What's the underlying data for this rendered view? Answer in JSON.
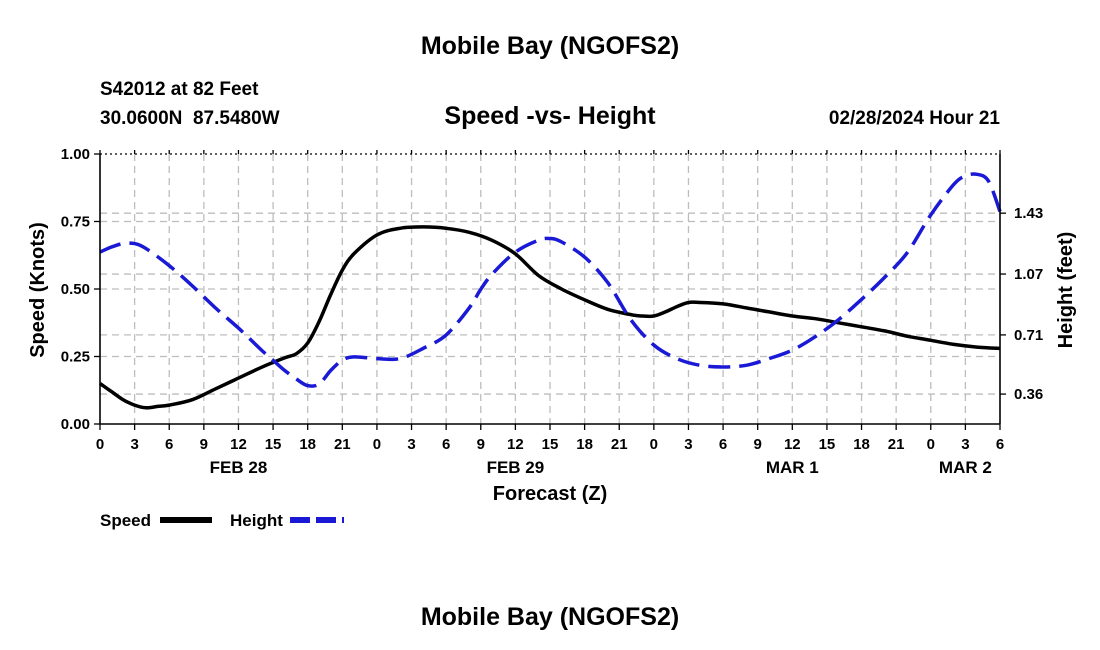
{
  "chart_data": {
    "type": "line",
    "title": "Mobile Bay (NGOFS2)",
    "subtitle": "Speed -vs- Height",
    "station": "S42012 at 82 Feet",
    "location": "30.0600N  87.5480W",
    "datetime": "02/28/2024 Hour 21",
    "xlabel": "Forecast (Z)",
    "ylabel_left": "Speed (Knots)",
    "ylabel_right": "Height (feet)",
    "x_range_hours": [
      0,
      78
    ],
    "x_ticks": [
      {
        "h": 0,
        "label": "0"
      },
      {
        "h": 3,
        "label": "3"
      },
      {
        "h": 6,
        "label": "6"
      },
      {
        "h": 9,
        "label": "9"
      },
      {
        "h": 12,
        "label": "12"
      },
      {
        "h": 15,
        "label": "15"
      },
      {
        "h": 18,
        "label": "18"
      },
      {
        "h": 21,
        "label": "21"
      },
      {
        "h": 24,
        "label": "0"
      },
      {
        "h": 27,
        "label": "3"
      },
      {
        "h": 30,
        "label": "6"
      },
      {
        "h": 33,
        "label": "9"
      },
      {
        "h": 36,
        "label": "12"
      },
      {
        "h": 39,
        "label": "15"
      },
      {
        "h": 42,
        "label": "18"
      },
      {
        "h": 45,
        "label": "21"
      },
      {
        "h": 48,
        "label": "0"
      },
      {
        "h": 51,
        "label": "3"
      },
      {
        "h": 54,
        "label": "6"
      },
      {
        "h": 57,
        "label": "9"
      },
      {
        "h": 60,
        "label": "12"
      },
      {
        "h": 63,
        "label": "15"
      },
      {
        "h": 66,
        "label": "18"
      },
      {
        "h": 69,
        "label": "21"
      },
      {
        "h": 72,
        "label": "0"
      },
      {
        "h": 75,
        "label": "3"
      },
      {
        "h": 78,
        "label": "6"
      }
    ],
    "date_labels": [
      {
        "h": 12,
        "label": "FEB 28"
      },
      {
        "h": 36,
        "label": "FEB 29"
      },
      {
        "h": 60,
        "label": "MAR 1"
      },
      {
        "h": 75,
        "label": "MAR 2"
      }
    ],
    "ylim_left": [
      0,
      1.0
    ],
    "yticks_left": [
      "0.00",
      "0.25",
      "0.50",
      "0.75",
      "1.00"
    ],
    "ylim_right": [
      0.183,
      1.78
    ],
    "yticks_right": [
      "0.36",
      "0.71",
      "1.07",
      "1.43"
    ],
    "series": [
      {
        "name": "Speed",
        "axis": "left",
        "color": "#000000",
        "style": "solid",
        "x": [
          0,
          1,
          2,
          3,
          4,
          5,
          6,
          8,
          10,
          12,
          14,
          16,
          17,
          18,
          19,
          20,
          21,
          22,
          24,
          26,
          28,
          30,
          32,
          34,
          36,
          38,
          40,
          42,
          44,
          46,
          47,
          48,
          49,
          50,
          51,
          52,
          54,
          56,
          58,
          60,
          62,
          64,
          66,
          68,
          70,
          72,
          74,
          76,
          78
        ],
        "values": [
          0.15,
          0.12,
          0.09,
          0.07,
          0.06,
          0.065,
          0.07,
          0.09,
          0.13,
          0.17,
          0.21,
          0.245,
          0.26,
          0.3,
          0.38,
          0.48,
          0.57,
          0.63,
          0.7,
          0.725,
          0.73,
          0.725,
          0.71,
          0.68,
          0.63,
          0.55,
          0.5,
          0.46,
          0.425,
          0.405,
          0.4,
          0.4,
          0.415,
          0.435,
          0.45,
          0.45,
          0.445,
          0.43,
          0.415,
          0.4,
          0.39,
          0.375,
          0.36,
          0.345,
          0.325,
          0.31,
          0.295,
          0.285,
          0.28
        ]
      },
      {
        "name": "Height",
        "axis": "right",
        "color": "#1a1ad6",
        "style": "dashed",
        "x": [
          0,
          1,
          2,
          3,
          4,
          6,
          8,
          10,
          12,
          14,
          15,
          16,
          17,
          18,
          19,
          20,
          21,
          22,
          24,
          26,
          28,
          30,
          32,
          33,
          34,
          36,
          38,
          39,
          40,
          42,
          44,
          46,
          48,
          50,
          52,
          54,
          56,
          58,
          60,
          62,
          64,
          66,
          68,
          70,
          72,
          74,
          75,
          76,
          77,
          78
        ],
        "values": [
          1.2,
          1.23,
          1.25,
          1.25,
          1.22,
          1.12,
          1.0,
          0.87,
          0.75,
          0.62,
          0.56,
          0.5,
          0.45,
          0.41,
          0.42,
          0.5,
          0.56,
          0.58,
          0.57,
          0.57,
          0.63,
          0.71,
          0.87,
          0.98,
          1.07,
          1.2,
          1.27,
          1.28,
          1.26,
          1.17,
          1.02,
          0.8,
          0.65,
          0.57,
          0.53,
          0.52,
          0.53,
          0.57,
          0.62,
          0.7,
          0.8,
          0.92,
          1.05,
          1.2,
          1.42,
          1.6,
          1.65,
          1.66,
          1.62,
          1.44
        ]
      }
    ],
    "legend": {
      "position": "bottom-left",
      "entries": [
        "Speed",
        "Height"
      ]
    },
    "footer_title": "Mobile Bay (NGOFS2)"
  }
}
